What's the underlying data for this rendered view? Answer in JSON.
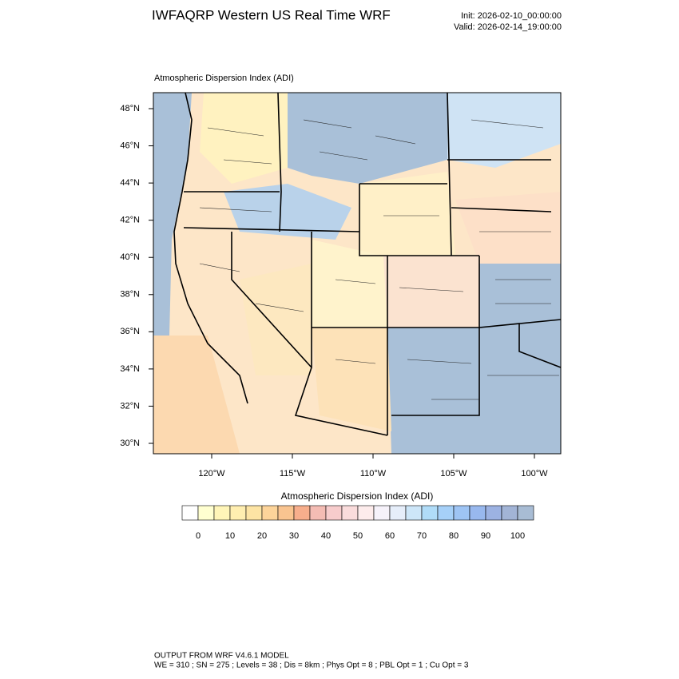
{
  "header": {
    "title": "IWFAQRP Western US Real Time WRF",
    "init": "Init: 2026-02-10_00:00:00",
    "valid": "Valid: 2026-02-14_19:00:00"
  },
  "map": {
    "subtitle": "Atmospheric Dispersion Index   (ADI)",
    "lat_ticks": [
      {
        "value": 48,
        "label": "48°N"
      },
      {
        "value": 46,
        "label": "46°N"
      },
      {
        "value": 44,
        "label": "44°N"
      },
      {
        "value": 42,
        "label": "42°N"
      },
      {
        "value": 40,
        "label": "40°N"
      },
      {
        "value": 38,
        "label": "38°N"
      },
      {
        "value": 36,
        "label": "36°N"
      },
      {
        "value": 34,
        "label": "34°N"
      },
      {
        "value": 32,
        "label": "32°N"
      },
      {
        "value": 30,
        "label": "30°N"
      }
    ],
    "lon_ticks": [
      {
        "value": -120,
        "label": "120°W"
      },
      {
        "value": -115,
        "label": "115°W"
      },
      {
        "value": -110,
        "label": "110°W"
      },
      {
        "value": -105,
        "label": "105°W"
      },
      {
        "value": -100,
        "label": "100°W"
      }
    ]
  },
  "colorbar": {
    "title": "Atmospheric Dispersion Index  (ADI)",
    "colors": [
      "#ffffff",
      "#ffffd0",
      "#fff5b8",
      "#ffeeb0",
      "#fde4a4",
      "#fdd49a",
      "#f9c490",
      "#f7ae8c",
      "#f4bcb4",
      "#f7cccc",
      "#fadcdc",
      "#fdecec",
      "#f6f2fa",
      "#e6eefa",
      "#cde6f8",
      "#b0dcf8",
      "#a6d0f8",
      "#9ec4f4",
      "#98b8ee",
      "#9cb2e2",
      "#a2b4d6",
      "#a8bcd4"
    ],
    "labels": [
      0,
      10,
      20,
      30,
      40,
      50,
      60,
      70,
      80,
      90,
      100
    ]
  },
  "footer": {
    "line1": "OUTPUT FROM WRF V4.6.1 MODEL",
    "line2": "WE = 310 ; SN = 275 ; Levels = 38 ; Dis = 8km ; Phys Opt = 8 ; PBL Opt = 1 ; Cu Opt = 3"
  }
}
